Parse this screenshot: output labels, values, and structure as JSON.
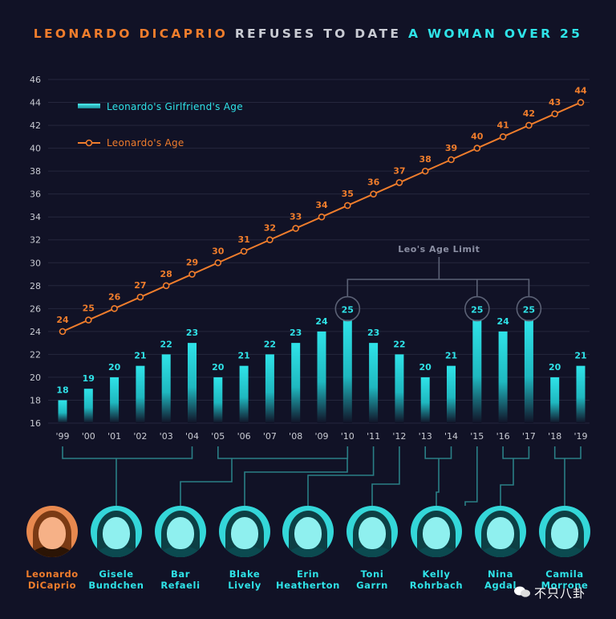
{
  "title": {
    "part1": "LEONARDO DICAPRIO",
    "part2": "REFUSES TO DATE",
    "part3": "A WOMAN OVER 25"
  },
  "colors": {
    "background": "#111226",
    "leo": "#f07d2c",
    "girlfriend": "#2fe3e8",
    "connector": "#2a7f86",
    "limit_line": "#5b6175"
  },
  "chart_data": {
    "type": "bar",
    "categories": [
      "'99",
      "'00",
      "'01",
      "'02",
      "'03",
      "'04",
      "'05",
      "'06",
      "'07",
      "'08",
      "'09",
      "'10",
      "'11",
      "'12",
      "'13",
      "'14",
      "'15",
      "'16",
      "'17",
      "'18",
      "'19"
    ],
    "series": [
      {
        "name": "Leonardo's Girlfriend's Age",
        "type": "bar",
        "color": "#2fe3e8",
        "values": [
          18,
          19,
          20,
          21,
          22,
          23,
          20,
          21,
          22,
          23,
          24,
          25,
          23,
          22,
          20,
          21,
          25,
          24,
          25,
          20,
          21
        ]
      },
      {
        "name": "Leonardo's Age",
        "type": "line",
        "color": "#f07d2c",
        "values": [
          24,
          25,
          26,
          27,
          28,
          29,
          30,
          31,
          32,
          33,
          34,
          35,
          36,
          37,
          38,
          39,
          40,
          41,
          42,
          43,
          44
        ]
      }
    ],
    "ylim": [
      16,
      46
    ],
    "yticks": [
      16,
      18,
      20,
      22,
      24,
      26,
      28,
      30,
      32,
      34,
      36,
      38,
      40,
      42,
      44,
      46
    ],
    "grid": true,
    "legend_position": "top-left",
    "annotation": {
      "label": "Leo's Age Limit",
      "circled_categories": [
        "'10",
        "'15",
        "'17"
      ]
    }
  },
  "people": [
    {
      "name": "Leonardo\nDiCaprio",
      "tint": "leo"
    },
    {
      "name": "Gisele\nBundchen",
      "tint": "gf"
    },
    {
      "name": "Bar\nRefaeli",
      "tint": "gf"
    },
    {
      "name": "Blake\nLively",
      "tint": "gf"
    },
    {
      "name": "Erin\nHeatherton",
      "tint": "gf"
    },
    {
      "name": "Toni\nGarrn",
      "tint": "gf"
    },
    {
      "name": "Kelly\nRohrbach",
      "tint": "gf"
    },
    {
      "name": "Nina\nAgdal",
      "tint": "gf"
    },
    {
      "name": "Camila\nMorrone",
      "tint": "gf"
    }
  ],
  "watermark": "不只八卦"
}
